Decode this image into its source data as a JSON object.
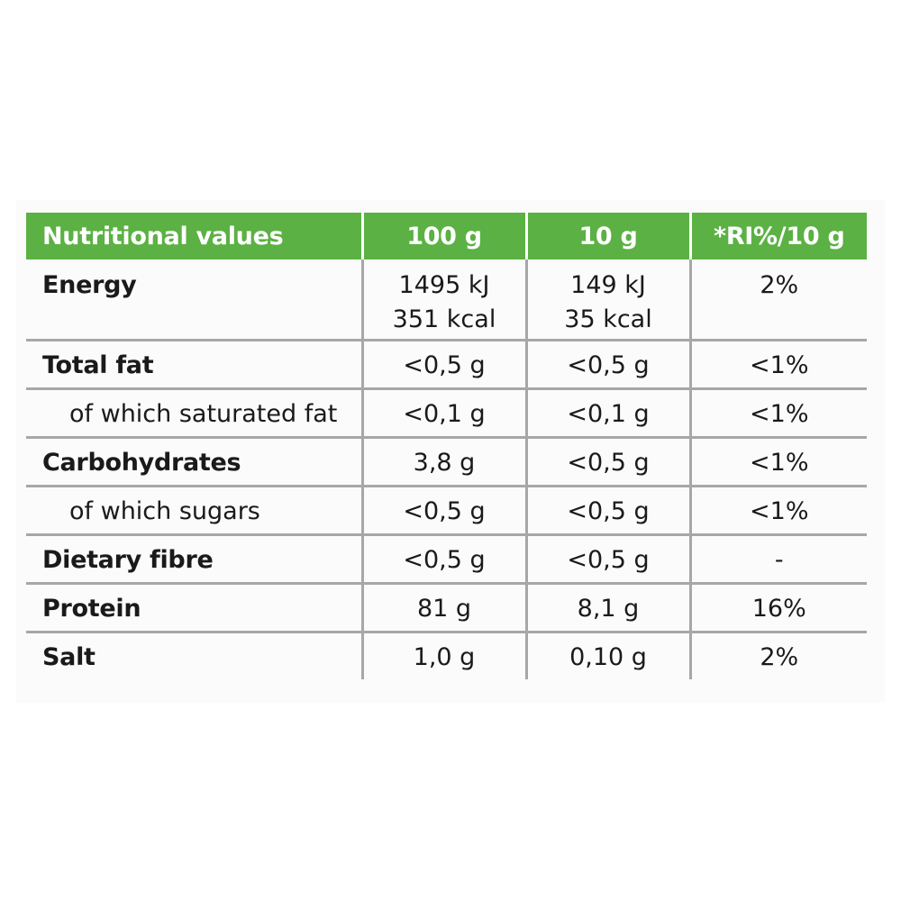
{
  "table": {
    "headers": [
      "Nutritional values",
      "100 g",
      "10 g",
      "*RI%/10 g"
    ],
    "energy": {
      "label": "Energy",
      "per100_kj": "1495 kJ",
      "per100_kcal": "351 kcal",
      "per10_kj": "149 kJ",
      "per10_kcal": "35 kcal",
      "ri": "2%"
    },
    "rows": [
      {
        "label": "Total fat",
        "per100": "<0,5 g",
        "per10": "<0,5 g",
        "ri": "<1%"
      },
      {
        "label": "of which saturated fat",
        "per100": "<0,1 g",
        "per10": "<0,1 g",
        "ri": "<1%"
      },
      {
        "label": "Carbohydrates",
        "per100": "3,8 g",
        "per10": "<0,5 g",
        "ri": "<1%"
      },
      {
        "label": "of which sugars",
        "per100": "<0,5 g",
        "per10": "<0,5 g",
        "ri": "<1%"
      },
      {
        "label": "Dietary fibre",
        "per100": "<0,5 g",
        "per10": "<0,5 g",
        "ri": "-"
      },
      {
        "label": "Protein",
        "per100": "81 g",
        "per10": "8,1 g",
        "ri": "16%"
      },
      {
        "label": "Salt",
        "per100": "1,0 g",
        "per10": "0,10 g",
        "ri": "2%"
      }
    ]
  },
  "colors": {
    "header_bg": "#5bb143",
    "header_text": "#ffffff",
    "grid_line": "#a7a7a7",
    "text": "#1a1a1a"
  }
}
